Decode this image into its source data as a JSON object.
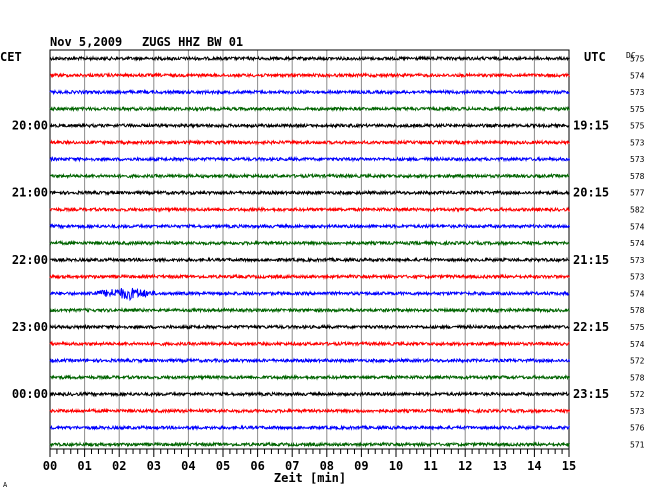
{
  "header": {
    "date": "Nov 5,2009",
    "station": "ZUGS HHZ BW 01",
    "left_timezone": "CET",
    "right_timezone": "UTC",
    "dc_label": "DC"
  },
  "chart_data": {
    "type": "line",
    "title": "Nov 5,2009   ZUGS HHZ BW 01",
    "xlabel": "Zeit [min]",
    "xlim": [
      0,
      15
    ],
    "x_ticks": [
      "00",
      "01",
      "02",
      "03",
      "04",
      "05",
      "06",
      "07",
      "08",
      "09",
      "10",
      "11",
      "12",
      "13",
      "14",
      "15"
    ],
    "grid": true,
    "trace_colors": [
      "#000000",
      "#ff0000",
      "#0000ff",
      "#006400"
    ],
    "left_time_labels": [
      {
        "trace_index": 4,
        "label": "20:00"
      },
      {
        "trace_index": 8,
        "label": "21:00"
      },
      {
        "trace_index": 12,
        "label": "22:00"
      },
      {
        "trace_index": 16,
        "label": "23:00"
      },
      {
        "trace_index": 20,
        "label": "00:00"
      }
    ],
    "right_time_labels": [
      {
        "trace_index": 4,
        "label": "19:15"
      },
      {
        "trace_index": 8,
        "label": "20:15"
      },
      {
        "trace_index": 12,
        "label": "21:15"
      },
      {
        "trace_index": 16,
        "label": "22:15"
      },
      {
        "trace_index": 20,
        "label": "23:15"
      }
    ],
    "dc_values": [
      "575",
      "574",
      "573",
      "575",
      "575",
      "573",
      "573",
      "578",
      "577",
      "582",
      "574",
      "574",
      "573",
      "573",
      "574",
      "578",
      "575",
      "574",
      "572",
      "578",
      "572",
      "573",
      "576",
      "571"
    ],
    "events": [
      {
        "trace_index": 14,
        "start_min": 1.0,
        "peak_min": 2.3,
        "end_min": 3.1
      }
    ],
    "corner_mark": "A"
  }
}
